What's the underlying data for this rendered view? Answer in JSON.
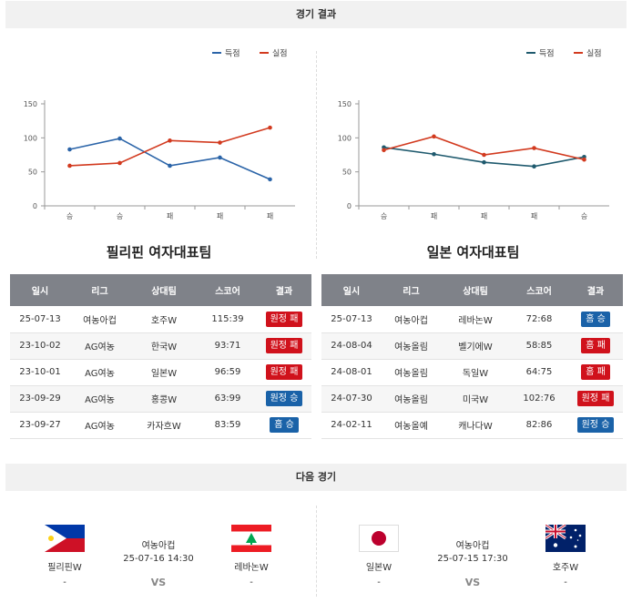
{
  "sections": {
    "results_title": "경기 결과",
    "next_title": "다음 경기"
  },
  "colors": {
    "scored": "#2b64a8",
    "conceded": "#d23a1f",
    "loss": "#d0121c",
    "win": "#1a62a8"
  },
  "legend": {
    "scored": "득점",
    "conceded": "실점"
  },
  "chart_data": [
    {
      "type": "line",
      "categories": [
        "승",
        "승",
        "패",
        "패",
        "패"
      ],
      "ylim": [
        0,
        150
      ],
      "yticks": [
        0,
        50,
        100,
        150
      ],
      "legend_position": "top-right",
      "grid": false,
      "series": [
        {
          "name": "득점",
          "values": [
            83,
            99,
            59,
            71,
            39
          ]
        },
        {
          "name": "실점",
          "values": [
            59,
            63,
            96,
            93,
            115
          ]
        }
      ]
    },
    {
      "type": "line",
      "categories": [
        "승",
        "패",
        "패",
        "패",
        "승"
      ],
      "ylim": [
        0,
        150
      ],
      "yticks": [
        0,
        50,
        100,
        150
      ],
      "legend_position": "top-right",
      "grid": false,
      "series": [
        {
          "name": "득점",
          "values": [
            86,
            76,
            64,
            58,
            72
          ]
        },
        {
          "name": "실점",
          "values": [
            82,
            102,
            75,
            85,
            68
          ]
        }
      ]
    }
  ],
  "left_team": {
    "title": "필리핀 여자대표팀",
    "headers": [
      "일시",
      "리그",
      "상대팀",
      "스코어",
      "결과"
    ],
    "rows": [
      {
        "date": "25-07-13",
        "league": "여농아컵",
        "opponent": "호주W",
        "score": "115:39",
        "result": "원정 패",
        "outcome": "loss"
      },
      {
        "date": "23-10-02",
        "league": "AG여농",
        "opponent": "한국W",
        "score": "93:71",
        "result": "원정 패",
        "outcome": "loss"
      },
      {
        "date": "23-10-01",
        "league": "AG여농",
        "opponent": "일본W",
        "score": "96:59",
        "result": "원정 패",
        "outcome": "loss"
      },
      {
        "date": "23-09-29",
        "league": "AG여농",
        "opponent": "홍콩W",
        "score": "63:99",
        "result": "원정 승",
        "outcome": "win"
      },
      {
        "date": "23-09-27",
        "league": "AG여농",
        "opponent": "카자흐W",
        "score": "83:59",
        "result": "홈 승",
        "outcome": "win"
      }
    ]
  },
  "right_team": {
    "title": "일본 여자대표팀",
    "headers": [
      "일시",
      "리그",
      "상대팀",
      "스코어",
      "결과"
    ],
    "rows": [
      {
        "date": "25-07-13",
        "league": "여농아컵",
        "opponent": "레바논W",
        "score": "72:68",
        "result": "홈 승",
        "outcome": "win"
      },
      {
        "date": "24-08-04",
        "league": "여농올림",
        "opponent": "벨기에W",
        "score": "58:85",
        "result": "홈 패",
        "outcome": "loss"
      },
      {
        "date": "24-08-01",
        "league": "여농올림",
        "opponent": "독일W",
        "score": "64:75",
        "result": "홈 패",
        "outcome": "loss"
      },
      {
        "date": "24-07-30",
        "league": "여농올림",
        "opponent": "미국W",
        "score": "102:76",
        "result": "원정 패",
        "outcome": "loss"
      },
      {
        "date": "24-02-11",
        "league": "여농올예",
        "opponent": "캐나다W",
        "score": "82:86",
        "result": "원정 승",
        "outcome": "win"
      }
    ]
  },
  "next_matches": [
    {
      "home": "필리핀W",
      "home_sub": "-",
      "home_flag": "philippines-flag",
      "league": "여농아컵",
      "datetime": "25-07-16 14:30",
      "vs": "VS",
      "away": "레바논W",
      "away_sub": "-",
      "away_flag": "lebanon-flag"
    },
    {
      "home": "일본W",
      "home_sub": "-",
      "home_flag": "japan-flag",
      "league": "여농아컵",
      "datetime": "25-07-15 17:30",
      "vs": "VS",
      "away": "호주W",
      "away_sub": "-",
      "away_flag": "australia-flag"
    }
  ]
}
